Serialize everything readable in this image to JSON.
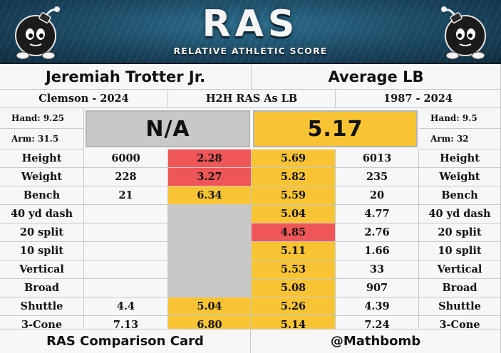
{
  "header": {
    "logo": "RAS",
    "subtitle": "RELATIVE ATHLETIC SCORE",
    "mascot_icon": "bomb-mascot-icon"
  },
  "players": {
    "left_name": "Jeremiah Trotter Jr.",
    "right_name": "Average LB",
    "left_school": "Clemson - 2024",
    "middle_label": "H2H RAS As LB",
    "right_years": "1987 - 2024"
  },
  "measurements": {
    "left_hand": "Hand: 9.25",
    "left_arm": "Arm: 31.5",
    "right_hand": "Hand: 9.5",
    "right_arm": "Arm: 32",
    "left_ras": "N/A",
    "right_ras": "5.17"
  },
  "rows": [
    {
      "label": "Height",
      "left_value": "6000",
      "left_score": "2.28",
      "left_color": "red",
      "right_score": "5.69",
      "right_color": "yellow",
      "right_value": "6013",
      "right_label": "Height"
    },
    {
      "label": "Weight",
      "left_value": "228",
      "left_score": "3.27",
      "left_color": "red",
      "right_score": "5.82",
      "right_color": "yellow",
      "right_value": "235",
      "right_label": "Weight"
    },
    {
      "label": "Bench",
      "left_value": "21",
      "left_score": "6.34",
      "left_color": "yellow",
      "right_score": "5.59",
      "right_color": "yellow",
      "right_value": "20",
      "right_label": "Bench"
    },
    {
      "label": "40 yd dash",
      "left_value": "",
      "left_score": "",
      "left_color": "gray",
      "right_score": "5.04",
      "right_color": "yellow",
      "right_value": "4.77",
      "right_label": "40 yd dash"
    },
    {
      "label": "20 split",
      "left_value": "",
      "left_score": "",
      "left_color": "gray",
      "right_score": "4.85",
      "right_color": "red",
      "right_value": "2.76",
      "right_label": "20 split"
    },
    {
      "label": "10 split",
      "left_value": "",
      "left_score": "",
      "left_color": "gray",
      "right_score": "5.11",
      "right_color": "yellow",
      "right_value": "1.66",
      "right_label": "10 split"
    },
    {
      "label": "Vertical",
      "left_value": "",
      "left_score": "",
      "left_color": "gray",
      "right_score": "5.53",
      "right_color": "yellow",
      "right_value": "33",
      "right_label": "Vertical"
    },
    {
      "label": "Broad",
      "left_value": "",
      "left_score": "",
      "left_color": "gray",
      "right_score": "5.08",
      "right_color": "yellow",
      "right_value": "907",
      "right_label": "Broad"
    },
    {
      "label": "Shuttle",
      "left_value": "4.4",
      "left_score": "5.04",
      "left_color": "yellow",
      "right_score": "5.26",
      "right_color": "yellow",
      "right_value": "4.39",
      "right_label": "Shuttle"
    },
    {
      "label": "3-Cone",
      "left_value": "7.13",
      "left_score": "6.80",
      "left_color": "yellow",
      "right_score": "5.14",
      "right_color": "yellow",
      "right_value": "7.24",
      "right_label": "3-Cone"
    }
  ],
  "footer": {
    "left": "RAS Comparison Card",
    "right": "@Mathbomb"
  },
  "colors": {
    "red": "#ef5658",
    "yellow": "#f8c434",
    "gray": "#c8c8c8",
    "banner": "#1a4660"
  }
}
